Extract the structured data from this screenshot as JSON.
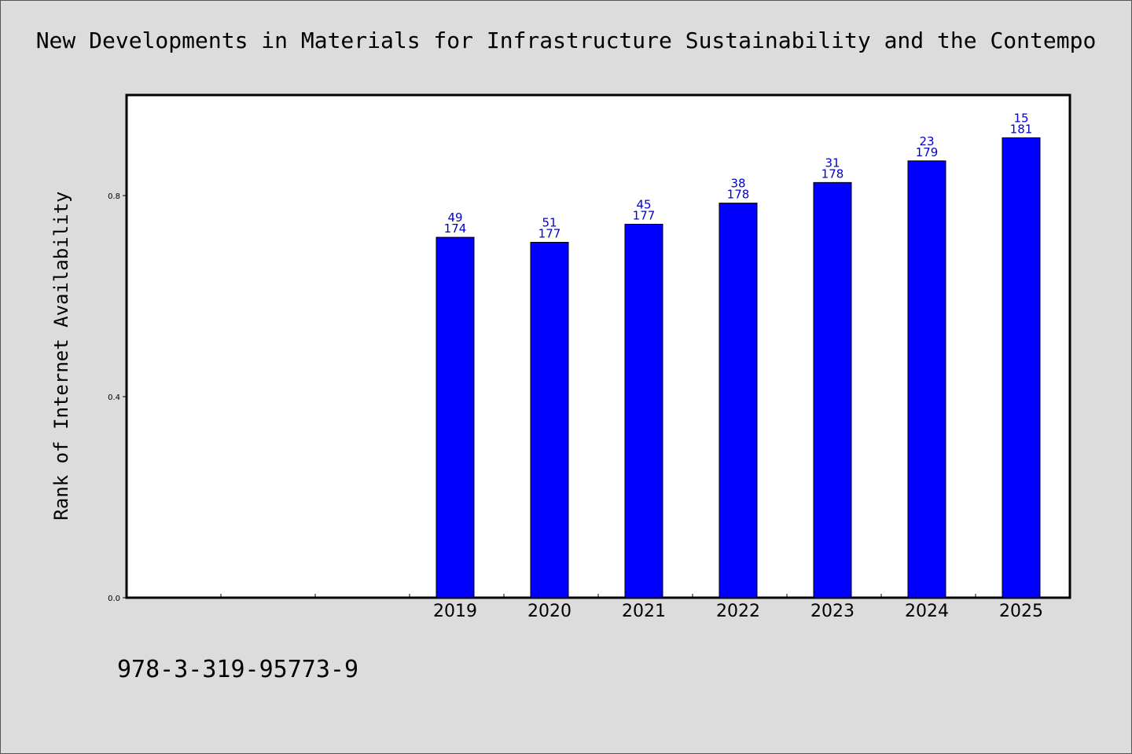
{
  "chart_data": {
    "type": "bar",
    "title": "New Developments in Materials for Infrastructure Sustainability and the Contempo",
    "ylabel": "Rank of Internet Availability",
    "xlabel": "",
    "categories": [
      "",
      "",
      "",
      "2019",
      "2020",
      "2021",
      "2022",
      "2023",
      "2024",
      "2025"
    ],
    "values": [
      null,
      null,
      null,
      0.717,
      0.707,
      0.743,
      0.785,
      0.826,
      0.869,
      0.915
    ],
    "bar_labels": [
      null,
      null,
      null,
      {
        "rank": "49",
        "total": "174"
      },
      {
        "rank": "51",
        "total": "177"
      },
      {
        "rank": "45",
        "total": "177"
      },
      {
        "rank": "38",
        "total": "178"
      },
      {
        "rank": "31",
        "total": "178"
      },
      {
        "rank": "23",
        "total": "179"
      },
      {
        "rank": "15",
        "total": "181"
      }
    ],
    "yticks": [
      0.0,
      0.4,
      0.8
    ],
    "ytick_labels": [
      "0.0",
      "0.4",
      "0.8"
    ],
    "ylim": [
      0,
      1.0
    ],
    "grid": false,
    "bar_color": "#0000ff",
    "label_color": "#0000cc"
  },
  "footer": {
    "isbn": "978-3-319-95773-9"
  }
}
